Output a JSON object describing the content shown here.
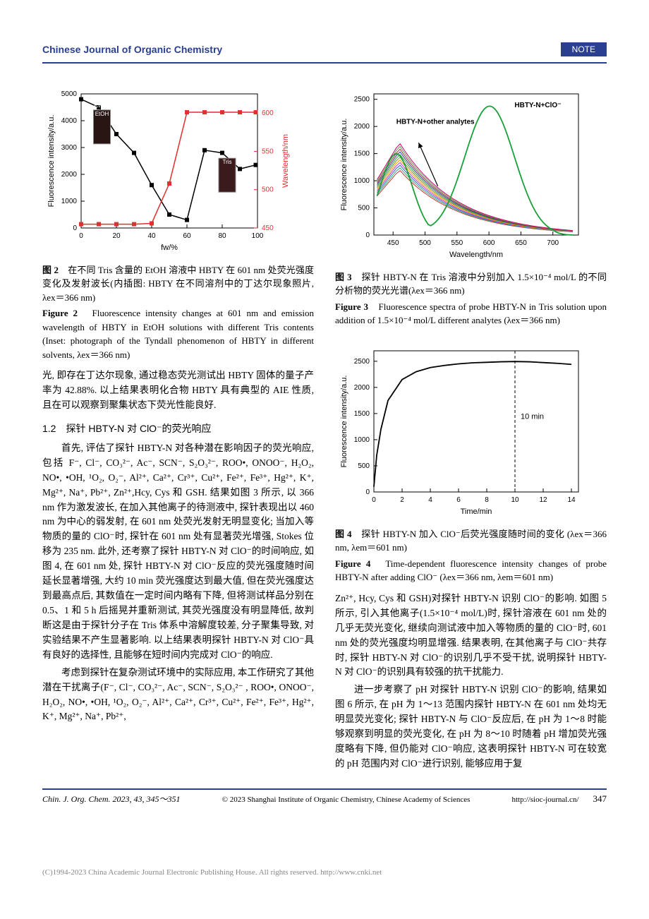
{
  "header": {
    "journal": "Chinese Journal of Organic Chemistry",
    "note": "NOTE"
  },
  "figure2": {
    "type": "dual-axis-line",
    "x_label": "fw/%",
    "y1_label": "Fluorescence intensity/a.u.",
    "y2_label": "Wavelength/nm",
    "x_ticks": [
      0,
      20,
      40,
      60,
      80,
      100
    ],
    "y1_ticks": [
      0,
      1000,
      2000,
      3000,
      4000,
      5000
    ],
    "y2_ticks": [
      450,
      500,
      550,
      600
    ],
    "series1_color": "#000000",
    "series2_color": "#e03030",
    "series1_points": [
      [
        0,
        4800
      ],
      [
        10,
        4500
      ],
      [
        20,
        3500
      ],
      [
        30,
        2800
      ],
      [
        40,
        1600
      ],
      [
        50,
        500
      ],
      [
        60,
        300
      ],
      [
        70,
        2900
      ],
      [
        80,
        2800
      ],
      [
        90,
        2200
      ],
      [
        99,
        2350
      ]
    ],
    "series2_points": [
      [
        0,
        455
      ],
      [
        10,
        455
      ],
      [
        20,
        455
      ],
      [
        30,
        455
      ],
      [
        40,
        456
      ],
      [
        50,
        508
      ],
      [
        60,
        601
      ],
      [
        70,
        601
      ],
      [
        80,
        601
      ],
      [
        90,
        601
      ],
      [
        99,
        601
      ]
    ],
    "label1": "EtOH",
    "label2": "Tris",
    "caption_cn_label": "图 2",
    "caption_cn": "在不同 Tris 含量的 EtOH 溶液中 HBTY 在 601 nm 处荧光强度变化及发射波长(内插图: HBTY 在不同溶剂中的丁达尔现象照片, λex＝366 nm)",
    "caption_en_label": "Figure 2",
    "caption_en": "Fluorescence intensity changes at 601 nm and emission wavelength of HBTY in EtOH solutions with different Tris contents (Inset: photograph of the Tyndall phenomenon of HBTY in different solvents, λex＝366 nm)"
  },
  "figure3": {
    "type": "line-multi",
    "x_label": "Wavelength/nm",
    "y_label": "Fluorescence intensity/a.u.",
    "x_ticks": [
      450,
      500,
      550,
      600,
      650,
      700
    ],
    "y_ticks": [
      0,
      500,
      1000,
      1500,
      2000,
      2500
    ],
    "label_top": "HBTY-N+ClO⁻",
    "label_left": "HBTY-N+other analytes",
    "main_curve_color": "#1aa038",
    "cluster_colors": [
      "#c33",
      "#3a7",
      "#36c",
      "#c3c",
      "#f90",
      "#884",
      "#393",
      "#339",
      "#933",
      "#696",
      "#c06"
    ],
    "caption_cn_label": "图 3",
    "caption_cn": "探针 HBTY-N 在 Tris 溶液中分别加入 1.5×10⁻⁴ mol/L 的不同分析物的荧光光谱(λex＝366 nm)",
    "caption_en_label": "Figure 3",
    "caption_en": "Fluorescence spectra of probe HBTY-N in Tris solution upon addition of 1.5×10⁻⁴ mol/L different analytes (λex＝366 nm)"
  },
  "figure4": {
    "type": "line",
    "x_label": "Time/min",
    "y_label": "Fluorescence intensity/a.u.",
    "x_ticks": [
      0,
      2,
      4,
      6,
      8,
      10,
      12,
      14
    ],
    "y_ticks": [
      0,
      500,
      1000,
      1500,
      2000,
      2500
    ],
    "line_color": "#000000",
    "annotation": "10 min",
    "points": [
      [
        0,
        100
      ],
      [
        0.2,
        700
      ],
      [
        0.5,
        1200
      ],
      [
        1,
        1750
      ],
      [
        2,
        2150
      ],
      [
        3,
        2300
      ],
      [
        4,
        2380
      ],
      [
        5,
        2420
      ],
      [
        6,
        2450
      ],
      [
        7,
        2470
      ],
      [
        8,
        2480
      ],
      [
        9,
        2490
      ],
      [
        10,
        2495
      ],
      [
        11,
        2490
      ],
      [
        12,
        2475
      ],
      [
        13,
        2460
      ],
      [
        14,
        2440
      ]
    ],
    "caption_cn_label": "图 4",
    "caption_cn": "探针 HBTY-N 加入 ClO⁻后荧光强度随时间的变化 (λex＝366 nm, λem＝601 nm)",
    "caption_en_label": "Figure 4",
    "caption_en": "Time-dependent fluorescence intensity changes of probe HBTY-N after adding ClO⁻ (λex＝366 nm, λem＝601 nm)"
  },
  "body": {
    "left_top": "光, 即存在丁达尔现象, 通过稳态荧光测试出 HBTY 固体的量子产率为 42.88%. 以上结果表明化合物 HBTY 具有典型的 AIE 性质, 且在可以观察到聚集状态下荧光性能良好.",
    "sec12": "1.2　探针 HBTY-N 对 ClO⁻的荧光响应",
    "left_p1": "首先, 评估了探针 HBTY-N 对各种潜在影响因子的荧光响应, 包括 F⁻, Cl⁻, CO₃²⁻, Ac⁻, SCN⁻, S₂O₃²⁻, ROO•, ONOO⁻, H₂O₂, NO•, •OH, ¹O₂, O₂⁻, Al²⁺, Ca²⁺, Cr³⁺, Cu²⁺, Fe²⁺, Fe³⁺, Hg²⁺, K⁺, Mg²⁺, Na⁺, Pb²⁺, Zn²⁺,Hcy, Cys 和 GSH. 结果如图 3 所示, 以 366 nm 作为激发波长, 在加入其他离子的待测液中, 探针表现出以 460 nm 为中心的弱发射, 在 601 nm 处荧光发射无明显变化; 当加入等物质的量的 ClO⁻时, 探针在 601 nm 处有显著荧光增强, Stokes 位移为 235 nm. 此外, 还考察了探针 HBTY-N 对 ClO⁻的时间响应, 如图 4, 在 601 nm 处, 探针 HBTY-N 对 ClO⁻反应的荧光强度随时间延长显著增强, 大约 10 min 荧光强度达到最大值, 但在荧光强度达到最高点后, 其数值在一定时间内略有下降, 但将测试样品分别在 0.5、1 和 5 h 后摇晃并重新测试, 其荧光强度没有明显降低, 故判断这是由于探针分子在 Tris 体系中溶解度较差, 分子聚集导致, 对实验结果不产生显著影响. 以上结果表明探针 HBTY-N 对 ClO⁻具有良好的选择性, 且能够在短时间内完成对 ClO⁻的响应.",
    "left_p2": "考虑到探针在复杂测试环境中的实际应用, 本工作研究了其他潜在干扰离子(F⁻, Cl⁻, CO₃²⁻, Ac⁻, SCN⁻, S₂O₃²⁻ , ROO•, ONOO⁻, H₂O₂, NO•, •OH, ¹O₂, O₂⁻, Al²⁺, Ca²⁺, Cr³⁺, Cu²⁺, Fe²⁺, Fe³⁺, Hg²⁺, K⁺, Mg²⁺, Na⁺, Pb²⁺,",
    "right_p1": "Zn²⁺, Hcy, Cys 和 GSH)对探针 HBTY-N 识别 ClO⁻的影响. 如图 5 所示, 引入其他离子(1.5×10⁻⁴ mol/L)时, 探针溶液在 601 nm 处的几乎无荧光变化, 继续向测试液中加入等物质的量的 ClO⁻时, 601 nm 处的荧光强度均明显增强. 结果表明, 在其他离子与 ClO⁻共存时, 探针 HBTY-N 对 ClO⁻的识别几乎不受干扰, 说明探针 HBTY-N 对 ClO⁻的识别具有较强的抗干扰能力.",
    "right_p2": "进一步考察了 pH 对探针 HBTY-N 识别 ClO⁻的影响, 结果如图 6 所示, 在 pH 为 1～13 范围内探针 HBTY-N 在 601 nm 处均无明显荧光变化; 探针 HBTY-N 与 ClO⁻反应后, 在 pH 为 1～8 时能够观察到明显的荧光变化, 在 pH 为 8～10 时随着 pH 增加荧光强度略有下降, 但仍能对 ClO⁻响应, 这表明探针 HBTY-N 可在较宽的 pH 范围内对 ClO⁻进行识别, 能够应用于复"
  },
  "footer": {
    "left": "Chin. J. Org. Chem. 2023, 43, 345～351",
    "center": "© 2023 Shanghai Institute of Organic Chemistry, Chinese Academy of Sciences",
    "right": "http://sioc-journal.cn/",
    "page": "347"
  },
  "copyright": "(C)1994-2023 China Academic Journal Electronic Publishing House. All rights reserved.   http://www.cnki.net"
}
